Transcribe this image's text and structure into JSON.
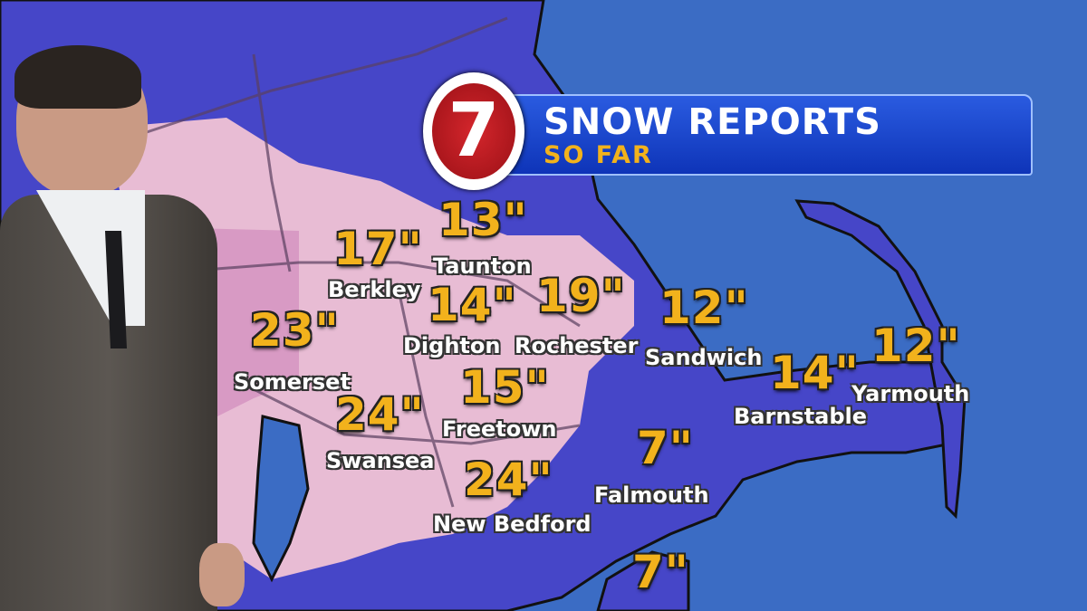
{
  "graphic": {
    "title": "SNOW REPORTS",
    "subtitle": "SO FAR",
    "logo_text": "7",
    "colors": {
      "accent_yellow": "#f2b21c",
      "banner_blue": "#1540c8",
      "ocean": "#3b6cc4",
      "heavy_snow_pink": "#e8bcd4",
      "snow_blue": "#4a4ad0"
    }
  },
  "reports": [
    {
      "amount": "17\"",
      "town": "Berkley"
    },
    {
      "amount": "13\"",
      "town": "Taunton"
    },
    {
      "amount": "14\"",
      "town": "Dighton"
    },
    {
      "amount": "19\"",
      "town": "Rochester"
    },
    {
      "amount": "12\"",
      "town": "Sandwich"
    },
    {
      "amount": "23\"",
      "town": "Somerset"
    },
    {
      "amount": "24\"",
      "town": "Swansea"
    },
    {
      "amount": "15\"",
      "town": "Freetown"
    },
    {
      "amount": "24\"",
      "town": "New Bedford"
    },
    {
      "amount": "7\"",
      "town": "Falmouth"
    },
    {
      "amount": "14\"",
      "town": "Barnstable"
    },
    {
      "amount": "12\"",
      "town": "Yarmouth"
    },
    {
      "amount": "7\"",
      "town": ""
    }
  ]
}
